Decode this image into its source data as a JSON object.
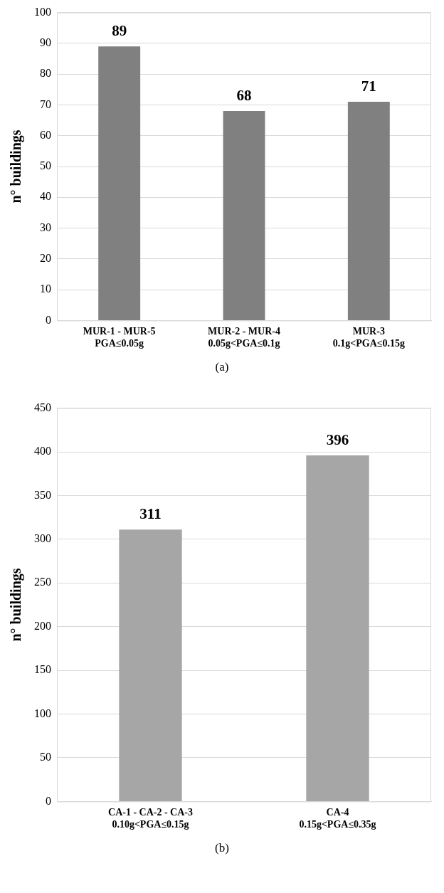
{
  "chart_data": [
    {
      "type": "bar",
      "ylabel": "n° buildings",
      "categories": [
        "MUR-1 - MUR-5\nPGA≤0.05g",
        "MUR-2 - MUR-4\n0.05g<PGA≤0.1g",
        "MUR-3\n0.1g<PGA≤0.15g"
      ],
      "values": [
        89,
        68,
        71
      ],
      "color": "#808080",
      "ylim": [
        0,
        100
      ],
      "yticks": [
        0,
        10,
        20,
        30,
        40,
        50,
        60,
        70,
        80,
        90,
        100
      ],
      "grid": "y",
      "data_labels": true,
      "annotations": [
        "(a)"
      ]
    },
    {
      "type": "bar",
      "ylabel": "n° buildings",
      "categories": [
        "CA-1 - CA-2 - CA-3\n0.10g<PGA≤0.15g",
        "CA-4\n0.15g<PGA≤0.35g"
      ],
      "values": [
        311,
        396
      ],
      "color": "#a6a6a6",
      "ylim": [
        0,
        450
      ],
      "yticks": [
        0,
        50,
        100,
        150,
        200,
        250,
        300,
        350,
        400,
        450
      ],
      "grid": "y",
      "data_labels": true,
      "annotations": [
        "(b)"
      ]
    }
  ]
}
